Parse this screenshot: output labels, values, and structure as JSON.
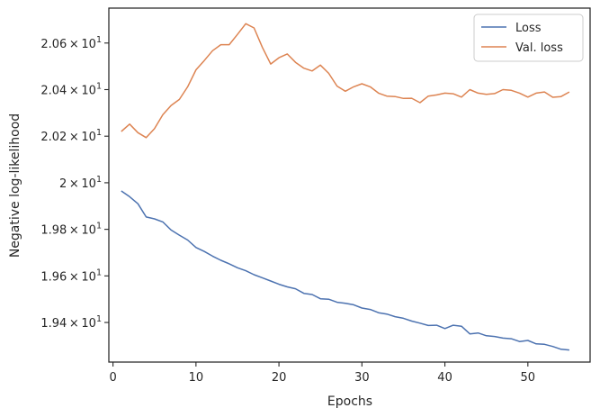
{
  "chart_data": {
    "type": "line",
    "xlabel": "Epochs",
    "ylabel": "Negative log-likelihood",
    "xlim": [
      -0.5,
      57.5
    ],
    "ylim": [
      19.23,
      20.75
    ],
    "x_ticks": [
      {
        "value": 0,
        "label": "0"
      },
      {
        "value": 10,
        "label": "10"
      },
      {
        "value": 20,
        "label": "20"
      },
      {
        "value": 30,
        "label": "30"
      },
      {
        "value": 40,
        "label": "40"
      },
      {
        "value": 50,
        "label": "50"
      }
    ],
    "y_ticks": [
      {
        "value": 19.4,
        "mantissa": "1.94",
        "base": "10",
        "exponent": "1"
      },
      {
        "value": 19.6,
        "mantissa": "1.96",
        "base": "10",
        "exponent": "1"
      },
      {
        "value": 19.8,
        "mantissa": "1.98",
        "base": "10",
        "exponent": "1"
      },
      {
        "value": 20.0,
        "mantissa": "2",
        "base": "10",
        "exponent": "1"
      },
      {
        "value": 20.2,
        "mantissa": "2.02",
        "base": "10",
        "exponent": "1"
      },
      {
        "value": 20.4,
        "mantissa": "2.04",
        "base": "10",
        "exponent": "1"
      },
      {
        "value": 20.6,
        "mantissa": "2.06",
        "base": "10",
        "exponent": "1"
      }
    ],
    "grid": false,
    "legend_position": "top-right",
    "x": [
      1,
      2,
      3,
      4,
      5,
      6,
      7,
      8,
      9,
      10,
      11,
      12,
      13,
      14,
      15,
      16,
      17,
      18,
      19,
      20,
      21,
      22,
      23,
      24,
      25,
      26,
      27,
      28,
      29,
      30,
      31,
      32,
      33,
      34,
      35,
      36,
      37,
      38,
      39,
      40,
      41,
      42,
      43,
      44,
      45,
      46,
      47,
      48,
      49,
      50,
      51,
      52,
      53,
      54,
      55
    ],
    "series": [
      {
        "name": "Loss",
        "color": "#4c72b0",
        "values": [
          19.965,
          19.94,
          19.91,
          19.853,
          19.845,
          19.832,
          19.797,
          19.775,
          19.754,
          19.722,
          19.705,
          19.685,
          19.667,
          19.652,
          19.635,
          19.622,
          19.605,
          19.592,
          19.578,
          19.564,
          19.553,
          19.545,
          19.525,
          19.52,
          19.502,
          19.5,
          19.487,
          19.482,
          19.476,
          19.462,
          19.456,
          19.442,
          19.436,
          19.425,
          19.418,
          19.406,
          19.397,
          19.387,
          19.388,
          19.374,
          19.388,
          19.384,
          19.351,
          19.355,
          19.343,
          19.34,
          19.333,
          19.33,
          19.318,
          19.323,
          19.308,
          19.306,
          19.297,
          19.285,
          19.282
        ]
      },
      {
        "name": "Val. loss",
        "color": "#dd8452",
        "values": [
          20.22,
          20.252,
          20.215,
          20.194,
          20.232,
          20.292,
          20.332,
          20.358,
          20.412,
          20.485,
          20.525,
          20.567,
          20.593,
          20.593,
          20.637,
          20.683,
          20.665,
          20.582,
          20.51,
          20.537,
          20.553,
          20.517,
          20.492,
          20.48,
          20.505,
          20.47,
          20.415,
          20.393,
          20.412,
          20.425,
          20.412,
          20.385,
          20.372,
          20.37,
          20.362,
          20.363,
          20.344,
          20.372,
          20.377,
          20.385,
          20.382,
          20.368,
          20.4,
          20.385,
          20.38,
          20.383,
          20.4,
          20.397,
          20.385,
          20.368,
          20.385,
          20.39,
          20.367,
          20.37,
          20.39
        ]
      }
    ]
  }
}
